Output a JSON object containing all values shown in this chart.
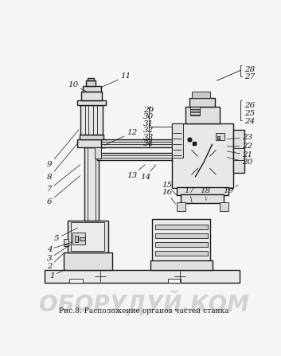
{
  "bg_color": "#f5f5f5",
  "line_color": "#1a1a1a",
  "label_color": "#1a1a1a",
  "fs": 7.5,
  "title": "Рис.8. Расположение органов частей станка",
  "watermark": "ОБОРУДУЙ.КОМ"
}
